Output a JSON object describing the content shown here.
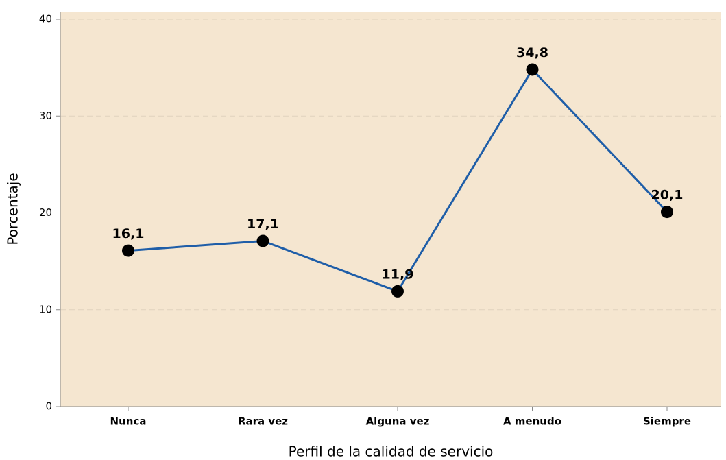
{
  "chart_data": {
    "type": "line",
    "categories": [
      "Nunca",
      "Rara vez",
      "Alguna vez",
      "A menudo",
      "Siempre"
    ],
    "series": [
      {
        "name": "Porcentaje",
        "color": "#1f5ea8",
        "marker_color": "#000000",
        "values": [
          16.1,
          17.1,
          11.9,
          34.8,
          20.1
        ],
        "value_labels": [
          "16,1",
          "17,1",
          "11,9",
          "34,8",
          "20,1"
        ]
      }
    ],
    "xlabel": "Perfil de la calidad de servicio",
    "ylabel": "Porcentaje",
    "ylim": [
      0,
      40
    ],
    "yticks": [
      0,
      10,
      20,
      30,
      40
    ],
    "grid": true,
    "background": "#f5e6d0"
  }
}
